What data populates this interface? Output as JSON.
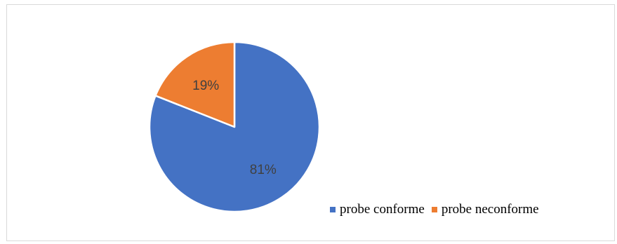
{
  "chart_data": {
    "type": "pie",
    "title": "",
    "slices": [
      {
        "label": "probe conforme",
        "value": 81,
        "display": "81%",
        "color": "#4472C4"
      },
      {
        "label": "probe neconforme",
        "value": 19,
        "display": "19%",
        "color": "#ED7D31"
      }
    ],
    "legend_position": "bottom-right",
    "start_angle": "12 o'clock, clockwise"
  }
}
